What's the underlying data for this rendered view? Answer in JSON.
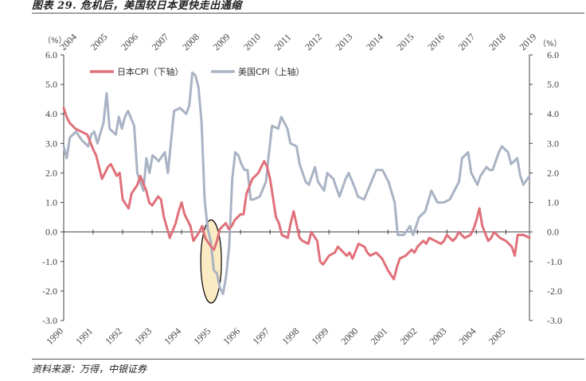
{
  "figure": {
    "title": "图表 29. 危机后，美国较日本更快走出通缩",
    "source": "资料来源：万得，中银证券"
  },
  "colors": {
    "japan": "#E0707A",
    "us": "#A9B3C4",
    "axis": "#444444",
    "highlight_fill": "#FBEBC3",
    "highlight_stroke": "#000000"
  },
  "chart_data": {
    "type": "line",
    "title": "",
    "axes": {
      "left_unit": "（%）",
      "right_unit": "（%）",
      "left_ylim": [
        -3.0,
        6.0
      ],
      "right_ylim": [
        -3.0,
        6.0
      ],
      "left_ticks": [
        "6.0",
        "5.0",
        "4.0",
        "3.0",
        "2.0",
        "1.0",
        "0.0",
        "-1.0",
        "-2.0",
        "-3.0"
      ],
      "right_ticks": [
        "6.0",
        "5.0",
        "4.0",
        "3.0",
        "2.0",
        "1.0",
        "0.0",
        "-1.0",
        "-2.0",
        "-3.0"
      ],
      "bottom_xlim": [
        1990,
        2005.8
      ],
      "top_xlim": [
        2004,
        2019.2
      ],
      "bottom_ticks": [
        "1990",
        "1991",
        "1992",
        "1993",
        "1994",
        "1995",
        "1996",
        "1997",
        "1998",
        "1999",
        "2000",
        "2001",
        "2002",
        "2003",
        "2004",
        "2005"
      ],
      "top_ticks": [
        "2004",
        "2005",
        "2006",
        "2007",
        "2008",
        "2009",
        "2010",
        "2011",
        "2012",
        "2013",
        "2014",
        "2015",
        "2016",
        "2017",
        "2018",
        "2019"
      ]
    },
    "legend": {
      "placement": "top-left"
    },
    "series": [
      {
        "name": "日本CPI（下轴）",
        "axis": "bottom",
        "x": [
          1990.0,
          1990.1,
          1990.2,
          1990.4,
          1990.6,
          1990.8,
          1991.0,
          1991.1,
          1991.3,
          1991.5,
          1991.6,
          1991.8,
          1991.9,
          1992.0,
          1992.2,
          1992.3,
          1992.5,
          1992.6,
          1992.8,
          1992.9,
          1993.0,
          1993.2,
          1993.3,
          1993.4,
          1993.6,
          1993.8,
          1993.9,
          1994.0,
          1994.1,
          1994.3,
          1994.4,
          1994.6,
          1994.7,
          1994.8,
          1995.0,
          1995.1,
          1995.2,
          1995.3,
          1995.4,
          1995.5,
          1995.6,
          1995.7,
          1995.8,
          1995.9,
          1996.0,
          1996.1,
          1996.2,
          1996.4,
          1996.6,
          1996.8,
          1996.9,
          1997.0,
          1997.2,
          1997.3,
          1997.4,
          1997.6,
          1997.7,
          1997.8,
          1998.0,
          1998.1,
          1998.3,
          1998.4,
          1998.6,
          1998.7,
          1998.8,
          1999.0,
          1999.2,
          1999.3,
          1999.4,
          1999.6,
          1999.7,
          1999.8,
          2000.0,
          2000.2,
          2000.3,
          2000.4,
          2000.6,
          2000.8,
          2000.9,
          2001.0,
          2001.2,
          2001.3,
          2001.4,
          2001.6,
          2001.8,
          2001.9,
          2002.0,
          2002.2,
          2002.3,
          2002.4,
          2002.6,
          2002.8,
          2002.9,
          2003.0,
          2003.2,
          2003.3,
          2003.4,
          2003.6,
          2003.8,
          2003.9,
          2004.0,
          2004.1,
          2004.2,
          2004.4,
          2004.5,
          2004.6,
          2004.8,
          2005.0,
          2005.2,
          2005.3,
          2005.4,
          2005.6,
          2005.8
        ],
        "values": [
          4.2,
          3.9,
          3.7,
          3.5,
          3.4,
          3.3,
          2.8,
          2.6,
          1.8,
          2.2,
          2.3,
          1.9,
          2.0,
          1.1,
          0.8,
          1.3,
          1.6,
          1.9,
          1.4,
          1.0,
          0.9,
          1.2,
          1.1,
          0.5,
          -0.2,
          0.3,
          0.7,
          1.0,
          0.6,
          0.2,
          -0.3,
          0.0,
          0.2,
          -0.2,
          -0.5,
          -0.6,
          -0.3,
          0.1,
          0.2,
          0.3,
          0.1,
          0.2,
          0.4,
          0.5,
          0.6,
          0.6,
          1.3,
          1.8,
          2.0,
          2.4,
          2.2,
          1.8,
          0.5,
          0.3,
          -0.1,
          -0.2,
          0.3,
          0.7,
          -0.2,
          -0.3,
          -0.4,
          0.0,
          -0.3,
          -1.0,
          -1.1,
          -0.8,
          -0.7,
          -0.5,
          -0.6,
          -0.8,
          -0.7,
          -0.9,
          -0.4,
          -0.5,
          -0.7,
          -0.8,
          -0.7,
          -0.9,
          -1.1,
          -1.3,
          -1.6,
          -1.2,
          -0.9,
          -0.8,
          -0.6,
          -0.7,
          -0.5,
          -0.3,
          -0.4,
          -0.2,
          -0.3,
          -0.4,
          -0.3,
          -0.1,
          -0.3,
          -0.2,
          0.0,
          -0.2,
          -0.1,
          0.1,
          0.4,
          0.8,
          0.2,
          -0.3,
          -0.2,
          0.0,
          -0.2,
          -0.3,
          -0.5,
          -0.8,
          -0.1,
          -0.1,
          -0.2
        ]
      },
      {
        "name": "美国CPI（上轴）",
        "axis": "top",
        "x": [
          2004.0,
          2004.1,
          2004.2,
          2004.4,
          2004.6,
          2004.8,
          2004.9,
          2005.0,
          2005.1,
          2005.3,
          2005.4,
          2005.5,
          2005.7,
          2005.8,
          2005.9,
          2006.0,
          2006.1,
          2006.3,
          2006.4,
          2006.6,
          2006.7,
          2006.8,
          2006.9,
          2007.0,
          2007.1,
          2007.3,
          2007.4,
          2007.6,
          2007.8,
          2007.9,
          2008.0,
          2008.1,
          2008.2,
          2008.3,
          2008.4,
          2008.5,
          2008.6,
          2008.7,
          2008.8,
          2008.9,
          2009.0,
          2009.1,
          2009.2,
          2009.3,
          2009.4,
          2009.5,
          2009.6,
          2009.7,
          2009.8,
          2009.9,
          2010.0,
          2010.1,
          2010.2,
          2010.4,
          2010.6,
          2010.7,
          2010.8,
          2011.0,
          2011.1,
          2011.3,
          2011.4,
          2011.6,
          2011.7,
          2011.9,
          2012.0,
          2012.2,
          2012.3,
          2012.5,
          2012.6,
          2012.8,
          2012.9,
          2013.0,
          2013.2,
          2013.3,
          2013.5,
          2013.6,
          2013.8,
          2014.0,
          2014.2,
          2014.4,
          2014.6,
          2014.8,
          2014.9,
          2015.0,
          2015.1,
          2015.3,
          2015.4,
          2015.6,
          2015.8,
          2016.0,
          2016.2,
          2016.4,
          2016.6,
          2016.8,
          2016.9,
          2017.0,
          2017.2,
          2017.3,
          2017.5,
          2017.6,
          2017.8,
          2017.9,
          2018.0,
          2018.2,
          2018.3,
          2018.5,
          2018.6,
          2018.8,
          2018.9,
          2019.0,
          2019.2
        ],
        "values": [
          2.9,
          2.5,
          3.2,
          3.4,
          3.1,
          2.9,
          3.3,
          3.4,
          3.0,
          3.7,
          4.7,
          3.5,
          3.3,
          3.9,
          3.5,
          3.9,
          4.1,
          3.6,
          2.0,
          1.4,
          2.5,
          2.0,
          2.6,
          2.5,
          2.4,
          2.7,
          2.0,
          4.1,
          4.2,
          4.1,
          4.0,
          4.3,
          5.4,
          5.3,
          4.9,
          3.7,
          1.1,
          0.1,
          -0.3,
          -1.3,
          -1.4,
          -1.9,
          -2.1,
          -1.5,
          -0.5,
          1.8,
          2.7,
          2.6,
          2.3,
          2.1,
          2.1,
          1.1,
          1.1,
          1.2,
          1.7,
          2.7,
          3.6,
          3.5,
          3.9,
          3.5,
          3.0,
          2.9,
          2.3,
          1.7,
          1.6,
          2.2,
          1.7,
          1.4,
          2.0,
          1.8,
          1.5,
          1.2,
          1.8,
          2.0,
          1.5,
          1.2,
          1.1,
          1.6,
          2.1,
          2.1,
          1.7,
          1.0,
          -0.1,
          -0.1,
          -0.1,
          0.2,
          -0.1,
          0.5,
          0.7,
          1.4,
          1.0,
          1.0,
          1.1,
          1.5,
          1.7,
          2.5,
          2.7,
          2.0,
          1.6,
          1.9,
          2.2,
          2.1,
          2.1,
          2.7,
          2.9,
          2.7,
          2.3,
          2.5,
          1.9,
          1.6,
          1.9
        ]
      }
    ],
    "annotations": [
      {
        "type": "ellipse-highlight",
        "x_bottom": 1995.0,
        "y_range": [
          -2.3,
          0.3
        ]
      }
    ]
  }
}
